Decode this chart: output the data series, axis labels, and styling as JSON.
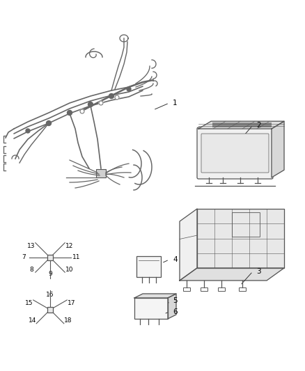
{
  "background_color": "#ffffff",
  "line_color": "#4a4a4a",
  "label_color": "#000000",
  "fig_width": 4.38,
  "fig_height": 5.33,
  "dpi": 100,
  "harness_color": "#666666",
  "component_color": "#555555",
  "component_fill": "#f8f8f8",
  "component_fill2": "#eeeeee",
  "component_fill3": "#e0e0e0"
}
